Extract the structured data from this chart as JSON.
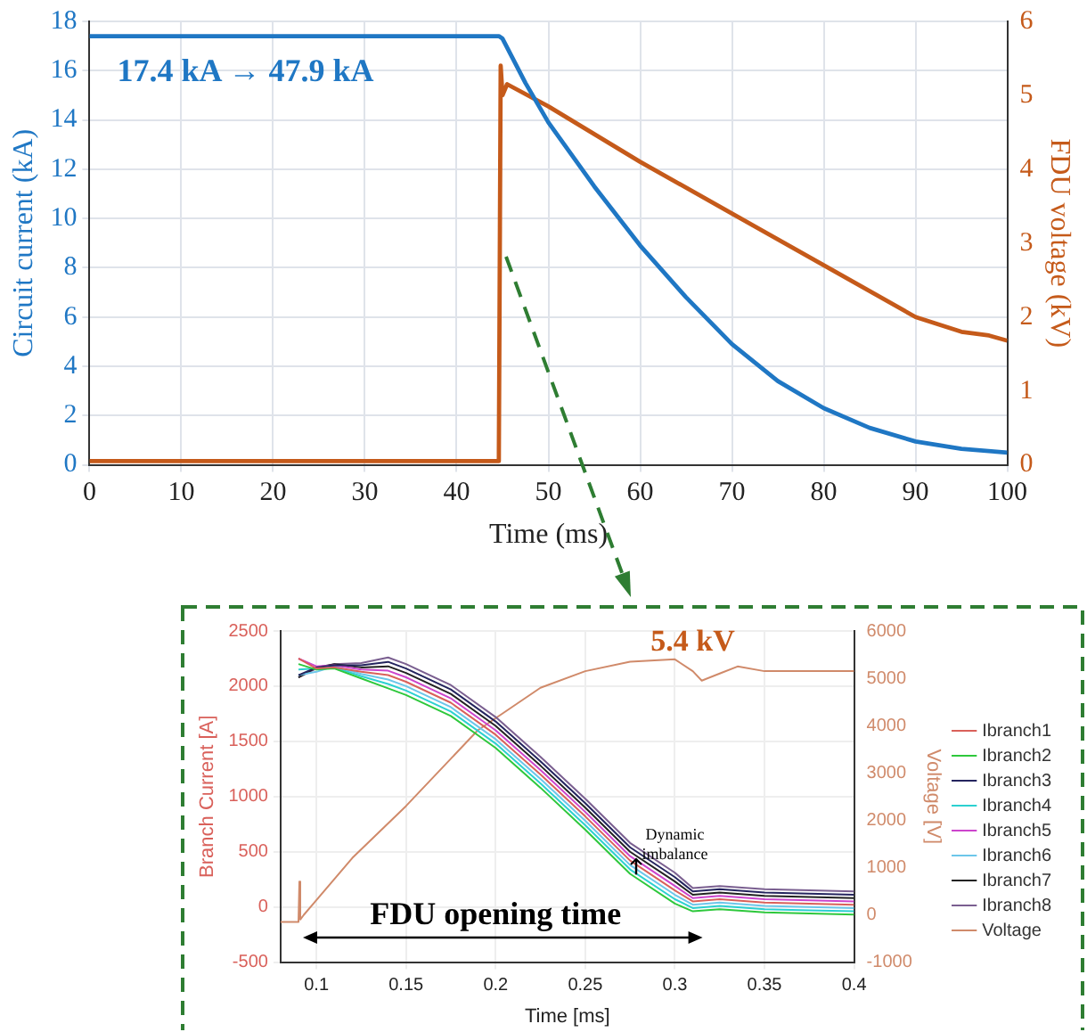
{
  "chart_data": [
    {
      "type": "line",
      "xlabel": "Time (ms)",
      "ylabel": "Circuit current (kA)",
      "y2label": "FDU voltage (kV)",
      "xlim": [
        0,
        100
      ],
      "xticks": [
        0,
        10,
        20,
        30,
        40,
        50,
        60,
        70,
        80,
        90,
        100
      ],
      "ylim": [
        0,
        18
      ],
      "yticks": [
        0,
        2,
        4,
        6,
        8,
        10,
        12,
        14,
        16,
        18
      ],
      "y2lim": [
        0,
        6
      ],
      "y2ticks": [
        0,
        1,
        2,
        3,
        4,
        5,
        6
      ],
      "grid": true,
      "legend": false,
      "annotations": [
        "17.4 kA → 47.9 kA"
      ],
      "series": [
        {
          "color": "#1f77c4",
          "x": [
            0,
            10,
            20,
            30,
            40,
            44.6,
            45,
            47.5,
            50,
            55,
            60,
            65,
            70,
            75,
            80,
            85,
            90,
            95,
            100
          ],
          "values": [
            17.4,
            17.4,
            17.4,
            17.4,
            17.4,
            17.4,
            17.3,
            15.5,
            13.9,
            11.3,
            8.9,
            6.8,
            4.9,
            3.4,
            2.3,
            1.5,
            0.95,
            0.65,
            0.5
          ]
        },
        {
          "color": "#c55a1a",
          "axis": "y2",
          "x": [
            0,
            44.6,
            44.8,
            45,
            45.5,
            50,
            60,
            70,
            80,
            90,
            95,
            98,
            100
          ],
          "values": [
            0.05,
            0.05,
            5.4,
            5.0,
            5.15,
            4.85,
            4.1,
            3.4,
            2.7,
            2.0,
            1.8,
            1.75,
            1.68
          ]
        }
      ]
    },
    {
      "type": "line",
      "xlabel": "Time [ms]",
      "ylabel": "Branch Current [A]",
      "y2label": "Voltage [V]",
      "xlim": [
        0.08,
        0.4
      ],
      "xticks": [
        0.1,
        0.15,
        0.2,
        0.25,
        0.3,
        0.35,
        0.4
      ],
      "ylim": [
        -500,
        2500
      ],
      "yticks": [
        -500,
        0,
        500,
        1000,
        1500,
        2000,
        2500
      ],
      "y2lim": [
        -1000,
        6000
      ],
      "y2ticks": [
        -1000,
        0,
        1000,
        2000,
        3000,
        4000,
        5000,
        6000
      ],
      "grid": true,
      "legend": "right",
      "annotations": [
        "5.4 kV",
        "FDU opening time",
        "Dynamic imbalance"
      ],
      "x": [
        0.09,
        0.1,
        0.11,
        0.125,
        0.14,
        0.15,
        0.175,
        0.2,
        0.225,
        0.25,
        0.275,
        0.3,
        0.31,
        0.325,
        0.35,
        0.375,
        0.4
      ],
      "series": [
        {
          "name": "Ibranch1",
          "color": "#d9605a",
          "values": [
            2250,
            2160,
            2170,
            2130,
            2100,
            2040,
            1850,
            1560,
            1200,
            820,
            420,
            150,
            50,
            70,
            40,
            30,
            20
          ]
        },
        {
          "name": "Ibranch2",
          "color": "#2ec83c",
          "values": [
            2200,
            2150,
            2160,
            2070,
            1980,
            1920,
            1730,
            1440,
            1080,
            700,
            300,
            30,
            -40,
            -20,
            -50,
            -60,
            -70
          ]
        },
        {
          "name": "Ibranch3",
          "color": "#24245e",
          "values": [
            2100,
            2170,
            2190,
            2190,
            2220,
            2160,
            1970,
            1680,
            1320,
            940,
            540,
            270,
            140,
            160,
            130,
            120,
            110
          ]
        },
        {
          "name": "Ibranch4",
          "color": "#2cd0d0",
          "values": [
            2150,
            2160,
            2170,
            2090,
            2020,
            1960,
            1770,
            1480,
            1120,
            740,
            340,
            70,
            -10,
            10,
            -20,
            -30,
            -40
          ]
        },
        {
          "name": "Ibranch5",
          "color": "#cc44cc",
          "values": [
            2250,
            2180,
            2190,
            2150,
            2140,
            2080,
            1890,
            1600,
            1240,
            860,
            460,
            190,
            80,
            100,
            70,
            60,
            50
          ]
        },
        {
          "name": "Ibranch6",
          "color": "#6cc6ea",
          "values": [
            2100,
            2130,
            2180,
            2110,
            2060,
            2000,
            1810,
            1520,
            1160,
            780,
            380,
            110,
            20,
            40,
            10,
            0,
            -10
          ]
        },
        {
          "name": "Ibranch7",
          "color": "#222222",
          "values": [
            2080,
            2170,
            2200,
            2170,
            2180,
            2120,
            1930,
            1640,
            1280,
            900,
            500,
            230,
            110,
            130,
            100,
            90,
            80
          ]
        },
        {
          "name": "Ibranch8",
          "color": "#7a5f90",
          "values": [
            2080,
            2160,
            2200,
            2210,
            2260,
            2200,
            2010,
            1720,
            1360,
            980,
            580,
            310,
            170,
            190,
            160,
            150,
            140
          ]
        },
        {
          "name": "Voltage",
          "color": "#d08a6a",
          "axis": "y2",
          "x": [
            0.08,
            0.09,
            0.0905,
            0.091,
            0.093,
            0.12,
            0.15,
            0.19,
            0.225,
            0.25,
            0.275,
            0.3,
            0.31,
            0.315,
            0.325,
            0.335,
            0.35,
            0.4
          ],
          "values": [
            -150,
            -150,
            700,
            -100,
            0,
            1200,
            2300,
            3900,
            4800,
            5150,
            5350,
            5400,
            5150,
            4950,
            5100,
            5250,
            5150,
            5150
          ]
        }
      ]
    }
  ]
}
